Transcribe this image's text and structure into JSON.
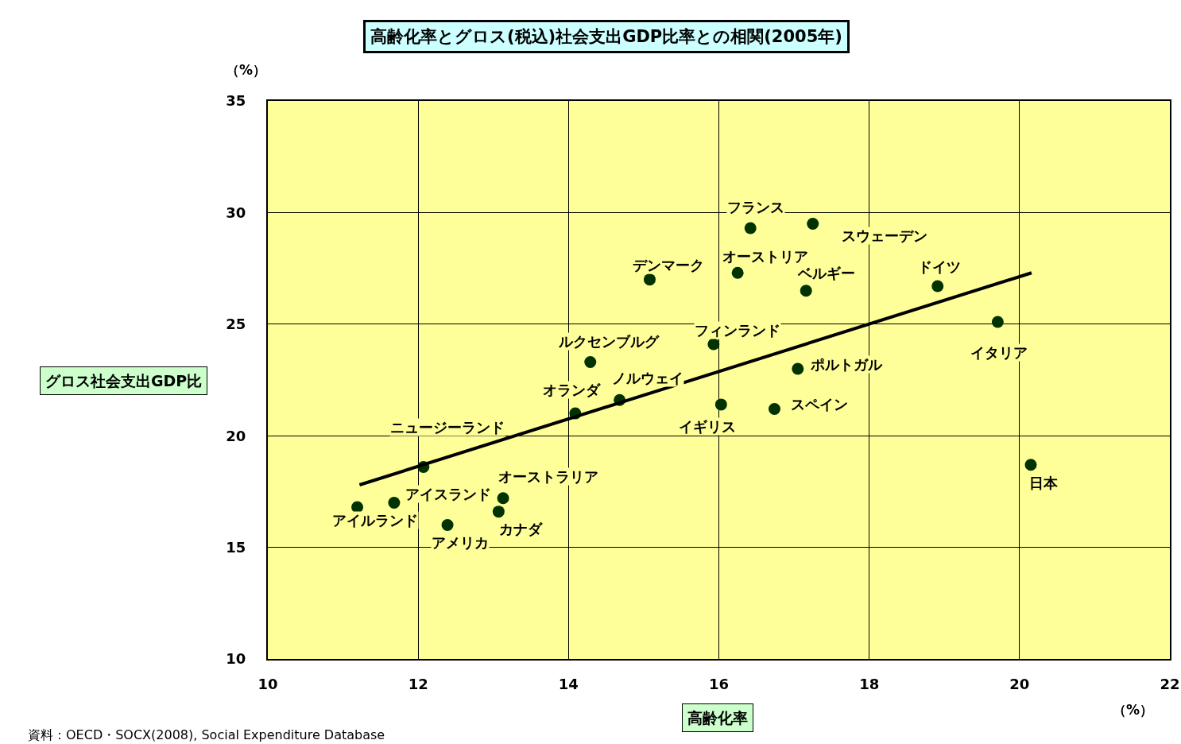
{
  "chart_data": {
    "type": "scatter",
    "title": "高齢化率とグロス(税込)社会支出GDP比率との相関(2005年)",
    "xlabel": "高齢化率",
    "ylabel": "グロス社会支出GDP比",
    "xlim": [
      10,
      22
    ],
    "xticks": [
      10,
      12,
      14,
      16,
      18,
      20,
      22
    ],
    "ylim": [
      10,
      35
    ],
    "yticks": [
      10,
      15,
      20,
      25,
      30,
      35
    ],
    "grid": true,
    "marker": "circle",
    "series": [
      {
        "color": "#003300",
        "x": [
          11.19,
          11.68,
          12.39,
          12.07,
          13.13,
          13.07,
          14.09,
          14.68,
          14.29,
          15.08,
          16.42,
          16.25,
          17.25,
          17.16,
          15.93,
          17.05,
          16.03,
          16.74,
          18.91,
          19.71,
          20.15
        ],
        "values": [
          16.8,
          17.0,
          16.0,
          18.6,
          17.2,
          16.6,
          21.0,
          21.6,
          23.3,
          27.0,
          29.3,
          27.3,
          29.5,
          26.5,
          24.1,
          23.0,
          21.4,
          21.2,
          26.7,
          25.1,
          18.7
        ]
      },
      {
        "type": "line",
        "marker": "none",
        "color": "#000000",
        "x": [
          11.22,
          20.16
        ],
        "values": [
          17.8,
          27.3
        ]
      }
    ],
    "annotations": [
      "（%）",
      "（%）",
      "資料：OECD・SOCX(2008), Social Expenditure Database",
      {
        "text": "アイルランド",
        "x": 11.19,
        "y": 16.8
      },
      {
        "text": "アイスランド",
        "x": 11.68,
        "y": 17.0
      },
      {
        "text": "アメリカ",
        "x": 12.39,
        "y": 16.0
      },
      {
        "text": "ニュージーランド",
        "x": 12.07,
        "y": 18.6
      },
      {
        "text": "オーストラリア",
        "x": 13.13,
        "y": 17.2
      },
      {
        "text": "カナダ",
        "x": 13.07,
        "y": 16.6
      },
      {
        "text": "オランダ",
        "x": 14.09,
        "y": 21.0
      },
      {
        "text": "ノルウェイ",
        "x": 14.68,
        "y": 21.6
      },
      {
        "text": "ルクセンブルグ",
        "x": 14.29,
        "y": 23.3
      },
      {
        "text": "デンマーク",
        "x": 15.08,
        "y": 27.0
      },
      {
        "text": "フランス",
        "x": 16.42,
        "y": 29.3
      },
      {
        "text": "オーストリア",
        "x": 16.25,
        "y": 27.3
      },
      {
        "text": "スウェーデン",
        "x": 17.25,
        "y": 29.5
      },
      {
        "text": "ベルギー",
        "x": 17.16,
        "y": 26.5
      },
      {
        "text": "フィンランド",
        "x": 15.93,
        "y": 24.1
      },
      {
        "text": "ポルトガル",
        "x": 17.05,
        "y": 23.0
      },
      {
        "text": "イギリス",
        "x": 16.03,
        "y": 21.4
      },
      {
        "text": "スペイン",
        "x": 16.74,
        "y": 21.2
      },
      {
        "text": "ドイツ",
        "x": 18.91,
        "y": 26.7
      },
      {
        "text": "イタリア",
        "x": 19.71,
        "y": 25.1
      },
      {
        "text": "日本",
        "x": 20.15,
        "y": 18.7
      }
    ]
  }
}
